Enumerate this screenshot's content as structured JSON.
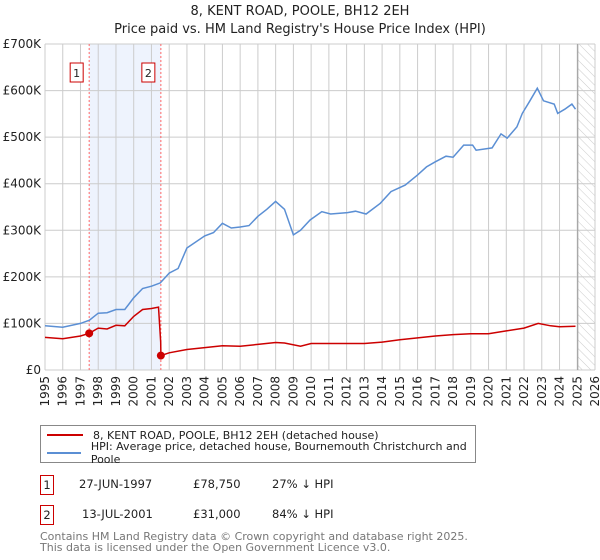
{
  "title": {
    "line1": "8, KENT ROAD, POOLE, BH12 2EH",
    "line2": "Price paid vs. HM Land Registry's House Price Index (HPI)"
  },
  "colors": {
    "property": "#cc0000",
    "hpi": "#5b8fd4",
    "band": "#eef3fd",
    "marker": "#ff6666"
  },
  "chart_data": {
    "type": "line",
    "title": "8, KENT ROAD, POOLE, BH12 2EH — Price paid vs. HM Land Registry's House Price Index (HPI)",
    "xlim": [
      1995,
      2026
    ],
    "ylim": [
      0,
      700000
    ],
    "x_ticks": [
      1995,
      1996,
      1997,
      1998,
      1999,
      2000,
      2001,
      2002,
      2003,
      2004,
      2005,
      2006,
      2007,
      2008,
      2009,
      2010,
      2011,
      2012,
      2013,
      2014,
      2015,
      2016,
      2017,
      2018,
      2019,
      2020,
      2021,
      2022,
      2023,
      2024,
      2025,
      2026
    ],
    "y_ticks": [
      0,
      100000,
      200000,
      300000,
      400000,
      500000,
      600000,
      700000
    ],
    "y_tick_labels": [
      "£0",
      "£100K",
      "£200K",
      "£300K",
      "£400K",
      "£500K",
      "£600K",
      "£700K"
    ],
    "grid": true,
    "forecast_start": 2025.03,
    "series": [
      {
        "name": "8, KENT ROAD, POOLE, BH12 2EH (detached house)",
        "color": "#cc0000",
        "x": [
          1995,
          1996,
          1997,
          1997.49,
          1998,
          1998.5,
          1999,
          1999.5,
          2000,
          2000.5,
          2001,
          2001.4,
          2001.52,
          2001.53,
          2002,
          2003,
          2004,
          2005,
          2006,
          2007,
          2008,
          2008.5,
          2009.4,
          2010,
          2011,
          2012,
          2013,
          2014,
          2015,
          2016,
          2017,
          2018,
          2019,
          2020,
          2021,
          2022,
          2022.8,
          2023.5,
          2024,
          2024.9
        ],
        "y": [
          70000,
          67000,
          73000,
          78750,
          90000,
          88000,
          96000,
          95000,
          115000,
          130000,
          132000,
          135000,
          60000,
          31000,
          37000,
          44000,
          48000,
          52000,
          51000,
          55000,
          59000,
          58000,
          51000,
          57000,
          57000,
          57000,
          57000,
          60000,
          65000,
          69000,
          73000,
          76000,
          78000,
          78000,
          84000,
          90000,
          100000,
          95000,
          93000,
          94000
        ]
      },
      {
        "name": "HPI: Average price, detached house, Bournemouth Christchurch and Poole",
        "color": "#5b8fd4",
        "x": [
          1995,
          1996,
          1997,
          1997.5,
          1998,
          1998.5,
          1999,
          1999.5,
          2000,
          2000.5,
          2001,
          2001.5,
          2002,
          2002.5,
          2003,
          2004,
          2004.5,
          2005,
          2005.5,
          2006,
          2006.5,
          2007,
          2007.5,
          2008,
          2008.5,
          2009,
          2009.4,
          2009.94,
          2010.6,
          2011.1,
          2012.05,
          2012.5,
          2013.1,
          2013.9,
          2014.5,
          2015.3,
          2016,
          2016.5,
          2017,
          2017.6,
          2018,
          2018.6,
          2019.1,
          2019.3,
          2020.2,
          2020.7,
          2021.05,
          2021.6,
          2021.9,
          2022.3,
          2022.75,
          2023.1,
          2023.7,
          2023.9,
          2024.3,
          2024.7,
          2024.9
        ],
        "y": [
          95000,
          92000,
          100000,
          107000,
          122000,
          123000,
          130000,
          130000,
          155000,
          175000,
          180000,
          187000,
          208000,
          218000,
          262000,
          288000,
          295000,
          315000,
          305000,
          307000,
          310000,
          330000,
          345000,
          362000,
          345000,
          290000,
          300000,
          322000,
          340000,
          335000,
          338000,
          341000,
          335000,
          358000,
          383000,
          397000,
          419000,
          436000,
          447000,
          459000,
          457000,
          483000,
          483000,
          472000,
          477000,
          507000,
          498000,
          522000,
          551000,
          576000,
          605000,
          578000,
          571000,
          551000,
          560000,
          571000,
          560000
        ]
      }
    ],
    "annotations": [
      {
        "label": "1",
        "x": 1997.49,
        "y": 78750
      },
      {
        "label": "2",
        "x": 2001.53,
        "y": 31000
      }
    ],
    "legend_placement": "below"
  },
  "legend": [
    {
      "label": "8, KENT ROAD, POOLE, BH12 2EH (detached house)"
    },
    {
      "label": "HPI: Average price, detached house, Bournemouth Christchurch and Poole"
    }
  ],
  "sales": [
    {
      "num": "1",
      "date": "27-JUN-1997",
      "price": "£78,750",
      "hpi": "27% ↓ HPI"
    },
    {
      "num": "2",
      "date": "13-JUL-2001",
      "price": "£31,000",
      "hpi": "84% ↓ HPI"
    }
  ],
  "footer": {
    "line1": "Contains HM Land Registry data © Crown copyright and database right 2025.",
    "line2": "This data is licensed under the Open Government Licence v3.0."
  }
}
